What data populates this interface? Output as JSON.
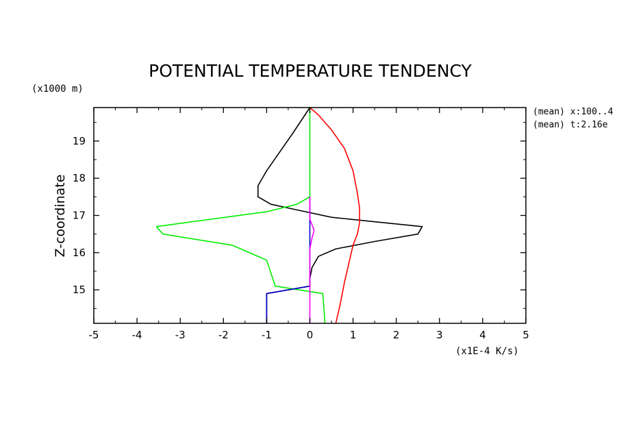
{
  "chart_data": {
    "type": "line",
    "title": "POTENTIAL TEMPERATURE TENDENCY",
    "ylabel": "Z-coordinate",
    "y_unit": "(x1000 m)",
    "x_unit": "(x1E-4 K/s)",
    "annotations": [
      "(mean) x:100..4",
      "(mean) t:2.16e"
    ],
    "xlim": [
      -5,
      5
    ],
    "ylim": [
      14.1,
      19.9
    ],
    "x_ticks": [
      "-5",
      "-4",
      "-3",
      "-2",
      "-1",
      "0",
      "1",
      "2",
      "3",
      "4",
      "5"
    ],
    "y_ticks": [
      "15",
      "16",
      "17",
      "18",
      "19"
    ],
    "grid": false,
    "series": [
      {
        "color": "#000000",
        "points": [
          [
            -1.0,
            14.1
          ],
          [
            -1.0,
            14.5
          ],
          [
            -1.0,
            14.9
          ],
          [
            0.0,
            15.1
          ],
          [
            0.0,
            15.3
          ],
          [
            0.05,
            15.6
          ],
          [
            0.2,
            15.9
          ],
          [
            0.6,
            16.1
          ],
          [
            1.5,
            16.3
          ],
          [
            2.5,
            16.5
          ],
          [
            2.6,
            16.7
          ],
          [
            0.5,
            16.95
          ],
          [
            -0.3,
            17.15
          ],
          [
            -0.9,
            17.3
          ],
          [
            -1.2,
            17.5
          ],
          [
            -1.2,
            17.8
          ],
          [
            -1.0,
            18.2
          ],
          [
            -0.7,
            18.7
          ],
          [
            -0.4,
            19.2
          ],
          [
            0.0,
            19.9
          ]
        ]
      },
      {
        "color": "#ff0000",
        "points": [
          [
            0.6,
            14.1
          ],
          [
            0.7,
            14.6
          ],
          [
            0.8,
            15.2
          ],
          [
            0.9,
            15.7
          ],
          [
            1.0,
            16.2
          ],
          [
            1.1,
            16.5
          ],
          [
            1.15,
            16.8
          ],
          [
            1.15,
            17.2
          ],
          [
            1.1,
            17.6
          ],
          [
            1.0,
            18.2
          ],
          [
            0.8,
            18.8
          ],
          [
            0.5,
            19.3
          ],
          [
            0.2,
            19.7
          ],
          [
            0.0,
            19.9
          ]
        ]
      },
      {
        "color": "#00ee00",
        "points": [
          [
            0.35,
            14.1
          ],
          [
            0.3,
            14.9
          ],
          [
            -0.8,
            15.1
          ],
          [
            -1.0,
            15.8
          ],
          [
            -1.8,
            16.2
          ],
          [
            -3.4,
            16.5
          ],
          [
            -3.55,
            16.7
          ],
          [
            -1.0,
            17.1
          ],
          [
            -0.3,
            17.3
          ],
          [
            0.0,
            17.5
          ],
          [
            0.0,
            18.5
          ],
          [
            0.0,
            19.9
          ]
        ]
      },
      {
        "color": "#0000cc",
        "points": [
          [
            -1.0,
            14.1
          ],
          [
            -1.0,
            14.9
          ],
          [
            0.0,
            15.1
          ],
          [
            0.0,
            17.5
          ]
        ]
      },
      {
        "color": "#ff00ff",
        "points": [
          [
            0.0,
            14.1
          ],
          [
            0.0,
            16.1
          ],
          [
            0.05,
            16.4
          ],
          [
            0.1,
            16.6
          ],
          [
            0.0,
            16.9
          ],
          [
            0.0,
            17.5
          ]
        ]
      }
    ]
  }
}
